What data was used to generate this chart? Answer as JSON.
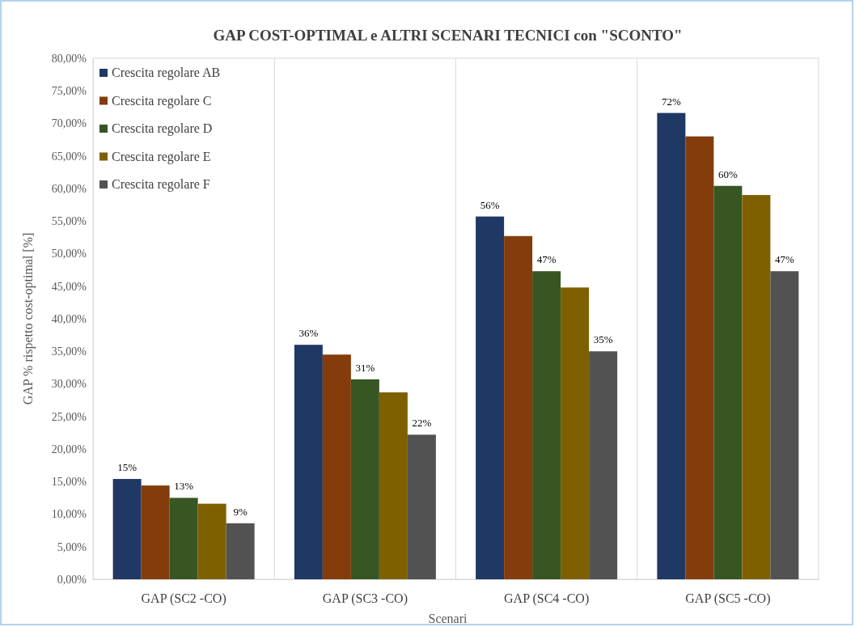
{
  "chart_data": {
    "type": "bar",
    "title": "GAP COST-OPTIMAL e ALTRI SCENARI TECNICI con \"SCONTO\"",
    "xlabel": "Scenari",
    "ylabel": "GAP % rispetto cost-optimal [%]",
    "categories": [
      "GAP (SC2 -CO)",
      "GAP (SC3 -CO)",
      "GAP (SC4 -CO)",
      "GAP (SC5 -CO)"
    ],
    "series": [
      {
        "name": "Crescita regolare AB",
        "color": "#203864",
        "values": [
          15.4,
          36.0,
          55.7,
          71.6
        ],
        "value_labels": [
          "15%",
          "36%",
          "56%",
          "72%"
        ]
      },
      {
        "name": "Crescita regolare C",
        "color": "#843c0c",
        "values": [
          14.4,
          34.5,
          52.7,
          68.0
        ]
      },
      {
        "name": "Crescita regolare D",
        "color": "#375623",
        "values": [
          12.5,
          30.7,
          47.3,
          60.4
        ],
        "value_labels": [
          "13%",
          "31%",
          "47%",
          "60%"
        ]
      },
      {
        "name": "Crescita regolare E",
        "color": "#7f6000",
        "values": [
          11.6,
          28.7,
          44.8,
          59.0
        ]
      },
      {
        "name": "Crescita regolare F",
        "color": "#525252",
        "values": [
          8.6,
          22.2,
          35.0,
          47.3
        ],
        "value_labels": [
          "9%",
          "22%",
          "35%",
          "47%"
        ]
      }
    ],
    "ylim": [
      0,
      80
    ],
    "yticks": [
      {
        "value": 0,
        "label": "0,00%"
      },
      {
        "value": 5,
        "label": "5,00%"
      },
      {
        "value": 10,
        "label": "10,00%"
      },
      {
        "value": 15,
        "label": "15,00%"
      },
      {
        "value": 20,
        "label": "20,00%"
      },
      {
        "value": 25,
        "label": "25,00%"
      },
      {
        "value": 30,
        "label": "30,00%"
      },
      {
        "value": 35,
        "label": "35,00%"
      },
      {
        "value": 40,
        "label": "40,00%"
      },
      {
        "value": 45,
        "label": "45,00%"
      },
      {
        "value": 50,
        "label": "50,00%"
      },
      {
        "value": 55,
        "label": "55,00%"
      },
      {
        "value": 60,
        "label": "60,00%"
      },
      {
        "value": 65,
        "label": "65,00%"
      },
      {
        "value": 70,
        "label": "70,00%"
      },
      {
        "value": 75,
        "label": "75,00%"
      },
      {
        "value": 80,
        "label": "80,00%"
      }
    ],
    "grid": "x",
    "legend": "top left"
  }
}
